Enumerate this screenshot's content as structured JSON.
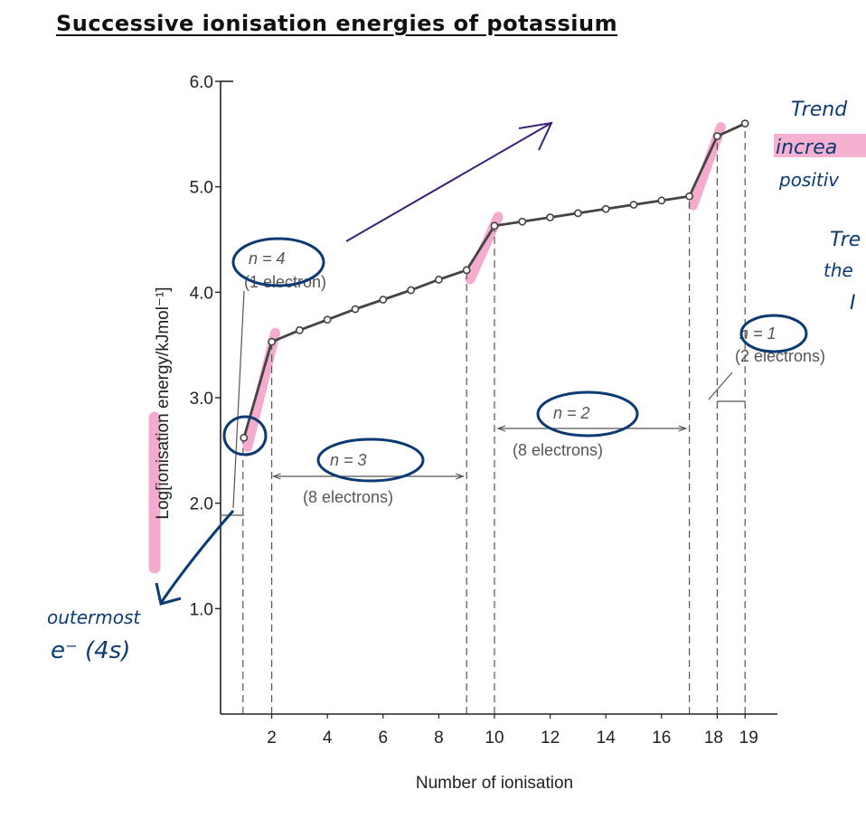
{
  "title": "Successive ionisation energies of potassium",
  "chart_data": {
    "type": "line",
    "xlabel": "Number of ionisation",
    "ylabel": "Log[ionisation energy/kJmol⁻¹]",
    "x_tick_labels": [
      "2",
      "4",
      "6",
      "8",
      "10",
      "12",
      "14",
      "16",
      "18",
      "19"
    ],
    "y_tick_labels": [
      "1.0",
      "2.0",
      "3.0",
      "4.0",
      "5.0",
      "6.0"
    ],
    "x_ticks": [
      2,
      4,
      6,
      8,
      10,
      12,
      14,
      16,
      18,
      19
    ],
    "y_ticks": [
      1.0,
      2.0,
      3.0,
      4.0,
      5.0,
      6.0
    ],
    "ylim": [
      0,
      6.0
    ],
    "grid": false,
    "series": [
      {
        "x": [
          1,
          2,
          3,
          4,
          5,
          6,
          7,
          8,
          9,
          10,
          11,
          12,
          13,
          14,
          15,
          16,
          17,
          18,
          19
        ],
        "values": [
          2.62,
          3.53,
          3.64,
          3.74,
          3.84,
          3.93,
          4.02,
          4.12,
          4.21,
          4.63,
          4.67,
          4.71,
          4.75,
          4.79,
          4.83,
          4.87,
          4.91,
          5.48,
          5.6
        ]
      }
    ],
    "dashed_x": [
      1,
      2,
      9,
      10,
      17,
      18,
      19
    ],
    "annotations": [
      {
        "label": "n = 4",
        "detail": "(1 electron)"
      },
      {
        "label": "n = 3",
        "detail": "(8 electrons)"
      },
      {
        "label": "n = 2",
        "detail": "(8 electrons)"
      },
      {
        "label": "n = 1",
        "detail": "(2 electrons)"
      }
    ]
  },
  "handwriting": {
    "outermost": "outermost",
    "e4s": "e⁻ (4s)",
    "trend1": "Trend",
    "trend2": "increa",
    "trend3": "positiv",
    "trend4": "Tre",
    "trend5": "the",
    "trend6": "I"
  },
  "colors": {
    "highlight": "#f4a3c8",
    "ink": "#0c3a73",
    "arrow": "#3b1f7a",
    "line": "#444444"
  }
}
